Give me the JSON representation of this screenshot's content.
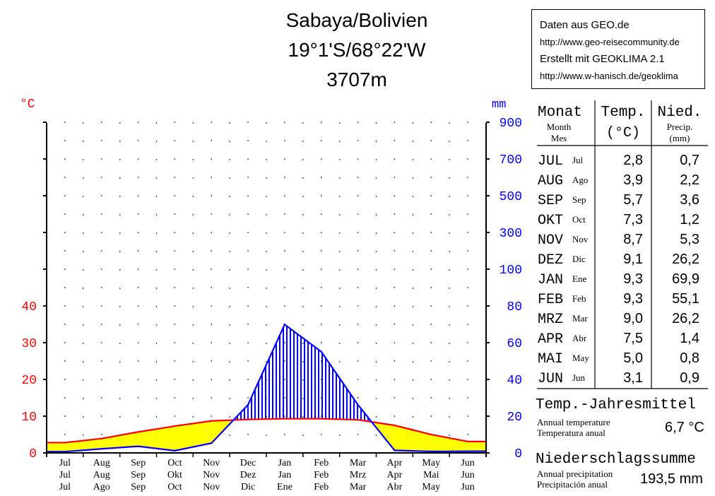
{
  "title": {
    "station": "Sabaya/Bolivien",
    "coords": "19°1'S/68°22'W",
    "altitude": "3707m"
  },
  "sources": {
    "line1": "Daten aus GEO.de",
    "line2": "http://www.geo-reisecommunity.de",
    "line3": "Erstellt mit GEOKLIMA 2.1",
    "line4": "http://www.w-hanisch.de/geoklima"
  },
  "axes": {
    "left_unit": "°C",
    "right_unit": "mm"
  },
  "table": {
    "head_month": "Monat",
    "head_month_sub1": "Month",
    "head_month_sub2": "Mes",
    "head_temp": "Temp.",
    "head_temp_unit": "(°C)",
    "head_prec": "Nied.",
    "head_prec_sub": "Precip.",
    "head_prec_unit": "(mm)"
  },
  "summary": {
    "temp_heading": "Temp.-Jahresmittel",
    "temp_en": "Annual temperature",
    "temp_es": "Temperatura  anual",
    "temp_value": "6,7 °C",
    "prec_heading": "Niederschlagssumme",
    "prec_en": "Annual precipitation",
    "prec_es": "Precipitación  anual",
    "prec_value": "193,5 mm"
  },
  "colors": {
    "temperature": "#ff0000",
    "precipitation": "#0000ff",
    "dry_fill": "#ffff00",
    "grid": "#000000"
  },
  "chart_data": {
    "type": "line",
    "months_de": [
      "Jul",
      "Aug",
      "Sep",
      "Okt",
      "Nov",
      "Dez",
      "Jan",
      "Feb",
      "Mrz",
      "Apr",
      "Mai",
      "Jun"
    ],
    "months_en": [
      "Jul",
      "Aug",
      "Sep",
      "Oct",
      "Nov",
      "Dec",
      "Jan",
      "Feb",
      "Mar",
      "Apr",
      "May",
      "Jun"
    ],
    "months_es": [
      "Jul",
      "Ago",
      "Sep",
      "Oct",
      "Nov",
      "Dic",
      "Ene",
      "Feb",
      "Mar",
      "Abr",
      "May",
      "Jun"
    ],
    "table_months": [
      "JUL",
      "AUG",
      "SEP",
      "OKT",
      "NOV",
      "DEZ",
      "JAN",
      "FEB",
      "MRZ",
      "APR",
      "MAI",
      "JUN"
    ],
    "table_temp": [
      "2,8",
      "3,9",
      "5,7",
      "7,3",
      "8,7",
      "9,1",
      "9,3",
      "9,3",
      "9,0",
      "7,5",
      "5,0",
      "3,1"
    ],
    "table_prec": [
      "0,7",
      "2,2",
      "3,6",
      "1,2",
      "5,3",
      "26,2",
      "69,9",
      "55,1",
      "26,2",
      "1,4",
      "0,8",
      "0,9"
    ],
    "series": [
      {
        "name": "Temp.",
        "unit": "°C",
        "values": [
          2.8,
          3.9,
          5.7,
          7.3,
          8.7,
          9.1,
          9.3,
          9.3,
          9.0,
          7.5,
          5.0,
          3.1
        ]
      },
      {
        "name": "Nied.",
        "unit": "mm",
        "values": [
          0.7,
          2.2,
          3.6,
          1.2,
          5.3,
          26.2,
          69.9,
          55.1,
          26.2,
          1.4,
          0.8,
          0.9
        ]
      }
    ],
    "left_ticks": [
      0,
      10,
      20,
      30,
      40
    ],
    "right_ticks": [
      0,
      20,
      40,
      60,
      80,
      100,
      300,
      500,
      700,
      900
    ],
    "ylim_temp": [
      0,
      90
    ],
    "ylim_prec": [
      0,
      900
    ],
    "grid": true
  }
}
